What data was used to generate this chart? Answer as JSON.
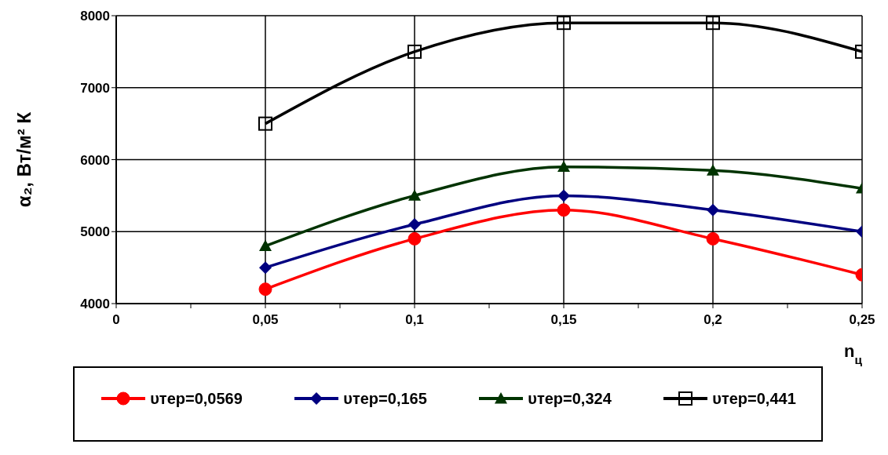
{
  "chart_data": {
    "type": "line",
    "xlabel": "n$_{ц}$",
    "ylabel": "α₂, Вт/м² К",
    "x": [
      0.05,
      0.1,
      0.15,
      0.2,
      0.25
    ],
    "xlim": [
      0,
      0.25
    ],
    "xticks": [
      0,
      {
        "value": 0.025,
        "label": null
      },
      {
        "value": 0.05,
        "label": "0,05"
      },
      {
        "value": 0.075,
        "label": null
      },
      {
        "value": 0.1,
        "label": "0,1"
      },
      {
        "value": 0.125,
        "label": null
      },
      {
        "value": 0.15,
        "label": "0,15"
      },
      {
        "value": 0.175,
        "label": null
      },
      {
        "value": 0.2,
        "label": "0,2"
      },
      {
        "value": 0.225,
        "label": null
      },
      {
        "value": 0.25,
        "label": "0,25"
      }
    ],
    "ylim": [
      4000,
      8000
    ],
    "yticks": [
      4000,
      5000,
      6000,
      7000,
      8000
    ],
    "grid": true,
    "legend": "bottom",
    "line_style": "solid",
    "series": [
      {
        "name": "υтер=0,0569",
        "color": "#ff0000",
        "marker": "circle",
        "values": [
          4200,
          4900,
          5300,
          4900,
          4400
        ]
      },
      {
        "name": "υтер=0,165",
        "color": "#000080",
        "marker": "diamond",
        "values": [
          4500,
          5100,
          5500,
          5300,
          5000
        ]
      },
      {
        "name": "υтер=0,324",
        "color": "#003300",
        "marker": "triangle",
        "values": [
          4800,
          5500,
          5900,
          5850,
          5600
        ]
      },
      {
        "name": "υтер=0,441",
        "color": "#000000",
        "marker": "square",
        "values": [
          6500,
          7500,
          7900,
          7900,
          7500
        ]
      }
    ]
  }
}
